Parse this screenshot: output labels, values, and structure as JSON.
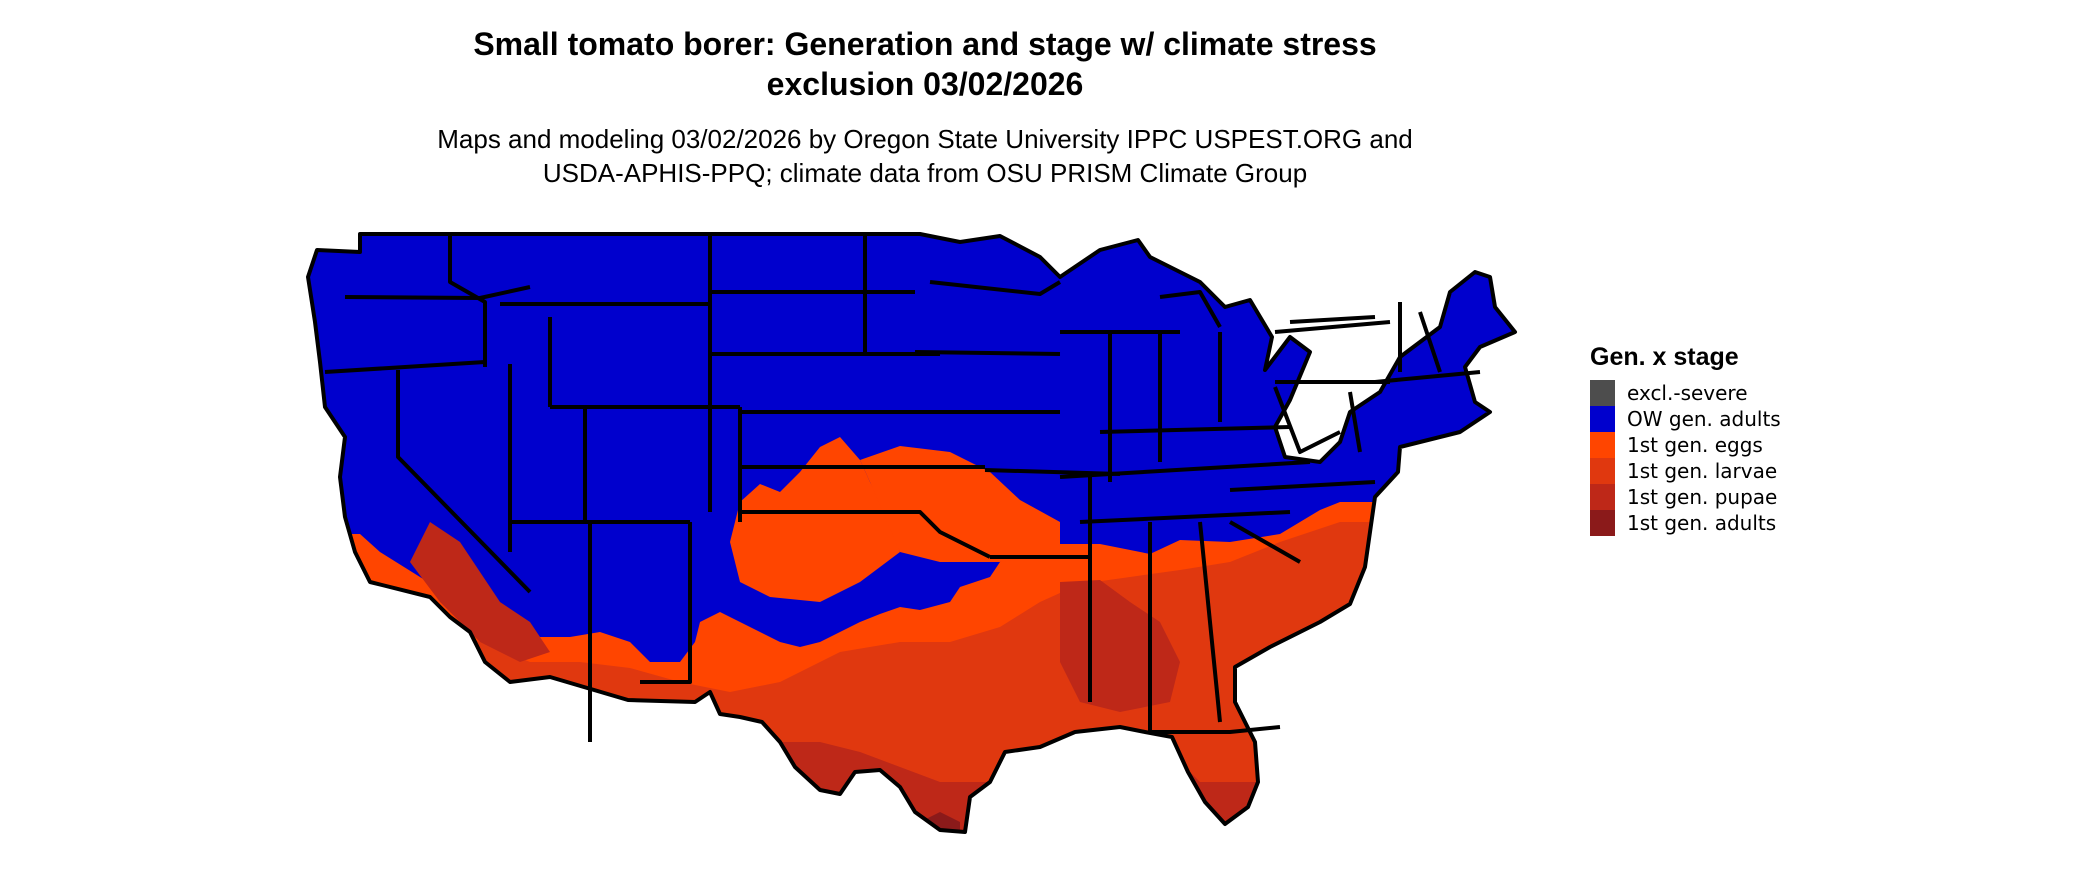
{
  "title": {
    "line1": "Small tomato borer: Generation and stage w/ climate stress",
    "line2": "exclusion 03/02/2026"
  },
  "subtitle": {
    "line1": "Maps and modeling 03/02/2026 by Oregon State University IPPC USPEST.ORG and",
    "line2": "USDA-APHIS-PPQ; climate data from OSU PRISM Climate Group"
  },
  "legend": {
    "title": "Gen. x stage",
    "items": [
      {
        "label": "excl.-severe",
        "color": "#4d4d4d"
      },
      {
        "label": "OW gen. adults",
        "color": "#0000cd"
      },
      {
        "label": "1st gen. eggs",
        "color": "#ff4500"
      },
      {
        "label": "1st gen. larvae",
        "color": "#e0380f"
      },
      {
        "label": "1st gen. pupae",
        "color": "#be2818"
      },
      {
        "label": "1st gen. adults",
        "color": "#8b1a1a"
      }
    ]
  },
  "map": {
    "region": "Contiguous United States",
    "boundaries": "state",
    "border_color": "#000000",
    "colors": {
      "ow_adults": "#0000cd",
      "eggs": "#ff4500",
      "larvae": "#e0380f",
      "pupae": "#be2818",
      "adults": "#8b1a1a"
    }
  }
}
